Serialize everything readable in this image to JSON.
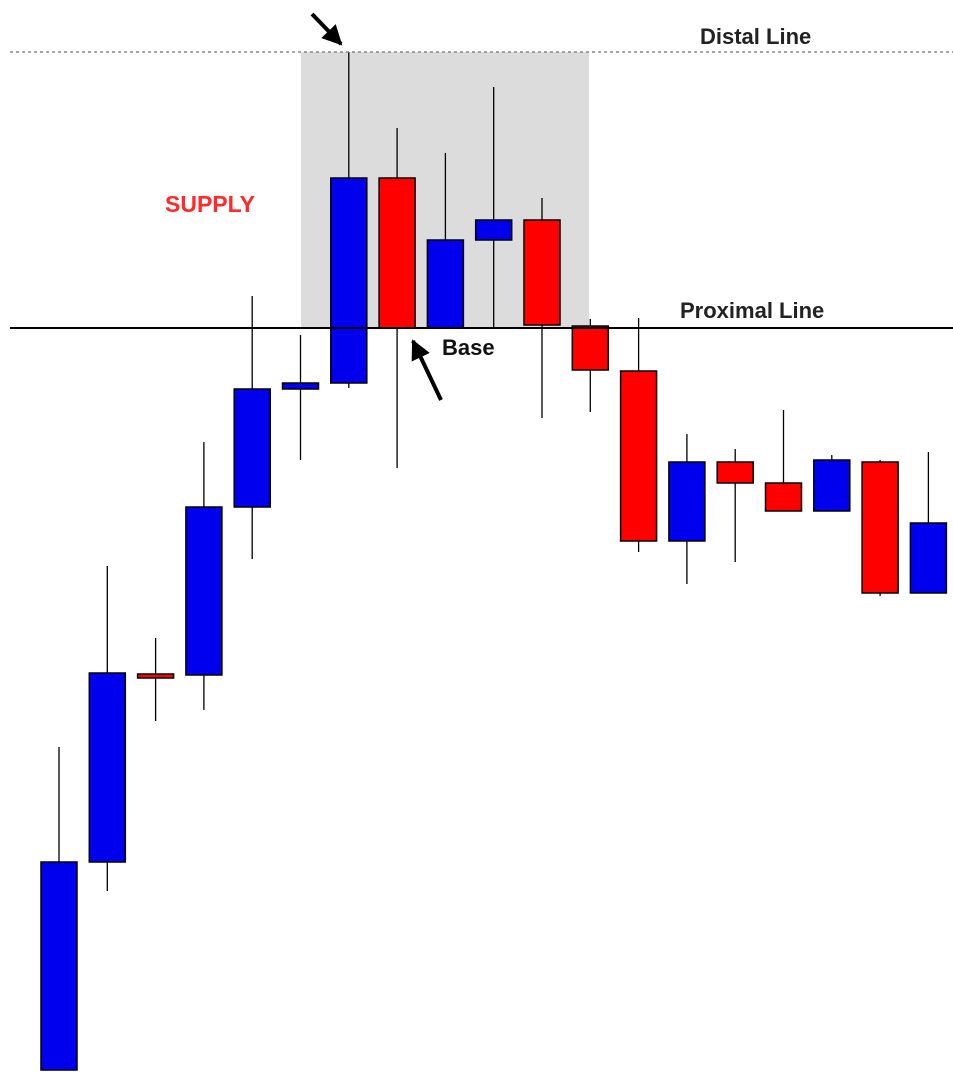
{
  "chart_data": {
    "type": "candlestick",
    "open": [
      2,
      210,
      398,
      397,
      565,
      683,
      689,
      894,
      744,
      832,
      852,
      746,
      701,
      531,
      610,
      589,
      561,
      610,
      479
    ],
    "high": [
      325,
      506,
      434,
      630,
      776,
      737,
      1020,
      944,
      919,
      985,
      874,
      753,
      754,
      638,
      623,
      662,
      617,
      612,
      620
    ],
    "low": [
      2,
      181,
      351,
      362,
      513,
      612,
      684,
      604,
      744,
      744,
      654,
      660,
      520,
      488,
      510,
      561,
      561,
      476,
      479
    ],
    "close": [
      210,
      399,
      394,
      565,
      683,
      689,
      894,
      744,
      832,
      852,
      747,
      702,
      531,
      610,
      589,
      561,
      612,
      479,
      549
    ],
    "up_color": "#0000ee",
    "down_color": "#ff0000",
    "ylim": [
      0,
      1072
    ],
    "zone": {
      "label": "SUPPLY",
      "high": 1020,
      "low": 744,
      "color": "#dcdcdc",
      "label_color": "#ff2a2a"
    },
    "distal_line": {
      "label": "Distal Line",
      "value": 1020
    },
    "proximal_line": {
      "label": "Proximal Line",
      "value": 744
    },
    "base_label": "Base"
  }
}
